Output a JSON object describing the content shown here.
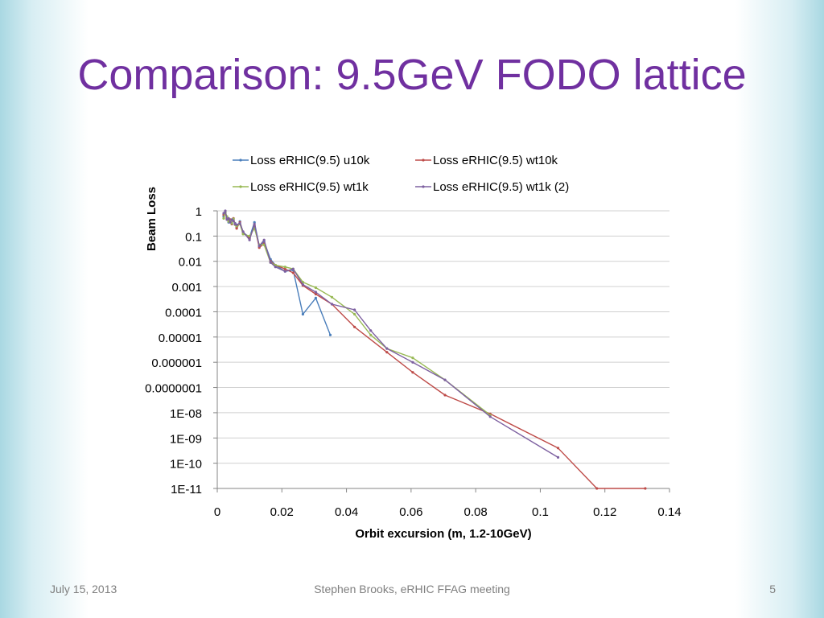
{
  "slide": {
    "title": "Comparison: 9.5GeV FODO lattice",
    "footer_date": "July 15, 2013",
    "footer_center": "Stephen Brooks, eRHIC FFAG meeting",
    "page_number": "5"
  },
  "colors": {
    "title": "#7030a0",
    "footer": "#7f7f7f",
    "grid": "#d0d0d0",
    "axis": "#868686"
  },
  "chart_data": {
    "type": "line",
    "title": "",
    "xlabel": "Orbit excursion (m, 1.2-10GeV)",
    "ylabel": "Beam Loss",
    "xlim": [
      0,
      0.14
    ],
    "ylim": [
      1e-11,
      1
    ],
    "yscale": "log",
    "grid": true,
    "legend_position": "top",
    "x_ticks": [
      "0",
      "0.02",
      "0.04",
      "0.06",
      "0.08",
      "0.1",
      "0.12",
      "0.14"
    ],
    "x_tick_values": [
      0,
      0.02,
      0.04,
      0.06,
      0.08,
      0.1,
      0.12,
      0.14
    ],
    "y_ticks": [
      "1",
      "0.1",
      "0.01",
      "0.001",
      "0.0001",
      "0.00001",
      "0.000001",
      "0.0000001",
      "1E-08",
      "1E-09",
      "1E-10",
      "1E-11"
    ],
    "y_tick_values": [
      1,
      0.1,
      0.01,
      0.001,
      0.0001,
      1e-05,
      1e-06,
      1e-07,
      1e-08,
      1e-09,
      1e-10,
      1e-11
    ],
    "series": [
      {
        "name": "Loss eRHIC(9.5) u10k",
        "color": "#4a7ebb",
        "x": [
          0.002,
          0.0025,
          0.003,
          0.0035,
          0.004,
          0.0045,
          0.005,
          0.0055,
          0.006,
          0.007,
          0.008,
          0.01,
          0.0115,
          0.013,
          0.0145,
          0.0165,
          0.018,
          0.021,
          0.0235,
          0.0265,
          0.0305,
          0.035
        ],
        "y": [
          0.6,
          0.9,
          0.55,
          0.35,
          0.42,
          0.3,
          0.45,
          0.32,
          0.22,
          0.38,
          0.14,
          0.09,
          0.35,
          0.04,
          0.06,
          0.012,
          0.007,
          0.004,
          0.0045,
          8e-05,
          0.00035,
          1.2e-05
        ]
      },
      {
        "name": "Loss eRHIC(9.5) wt10k",
        "color": "#be4b48",
        "x": [
          0.002,
          0.0025,
          0.003,
          0.0035,
          0.004,
          0.0045,
          0.005,
          0.0055,
          0.006,
          0.007,
          0.008,
          0.01,
          0.0115,
          0.013,
          0.0145,
          0.0165,
          0.018,
          0.021,
          0.0235,
          0.0265,
          0.0305,
          0.0355,
          0.0425,
          0.0525,
          0.0605,
          0.0705,
          0.0845,
          0.1055,
          0.1175,
          0.1325
        ],
        "y": [
          0.7,
          0.8,
          0.5,
          0.4,
          0.45,
          0.3,
          0.5,
          0.3,
          0.2,
          0.35,
          0.14,
          0.08,
          0.25,
          0.035,
          0.05,
          0.01,
          0.007,
          0.005,
          0.0035,
          0.0011,
          0.0005,
          0.0002,
          2.5e-05,
          2.5e-06,
          4e-07,
          5e-08,
          9e-09,
          4e-10,
          1e-11,
          1e-11
        ]
      },
      {
        "name": "Loss eRHIC(9.5) wt1k",
        "color": "#98b954",
        "x": [
          0.002,
          0.0025,
          0.003,
          0.0035,
          0.004,
          0.0045,
          0.005,
          0.0055,
          0.006,
          0.007,
          0.008,
          0.01,
          0.0115,
          0.013,
          0.0145,
          0.0165,
          0.018,
          0.021,
          0.0235,
          0.0265,
          0.0305,
          0.0355,
          0.0425,
          0.0475,
          0.0525,
          0.0605,
          0.0705,
          0.0845
        ],
        "y": [
          0.5,
          0.85,
          0.6,
          0.38,
          0.4,
          0.32,
          0.48,
          0.28,
          0.25,
          0.3,
          0.12,
          0.1,
          0.2,
          0.045,
          0.045,
          0.009,
          0.007,
          0.006,
          0.005,
          0.0015,
          0.0009,
          0.00038,
          8e-05,
          1.2e-05,
          3.5e-06,
          1.5e-06,
          2e-07,
          8e-09
        ]
      },
      {
        "name": "Loss eRHIC(9.5) wt1k (2)",
        "color": "#7d60a0",
        "x": [
          0.002,
          0.0025,
          0.003,
          0.0035,
          0.004,
          0.0045,
          0.005,
          0.0055,
          0.006,
          0.007,
          0.008,
          0.01,
          0.0115,
          0.013,
          0.0145,
          0.0165,
          0.018,
          0.021,
          0.0235,
          0.0265,
          0.0305,
          0.0355,
          0.0425,
          0.0475,
          0.0525,
          0.0605,
          0.0705,
          0.0845,
          0.1055
        ],
        "y": [
          0.8,
          1.0,
          0.45,
          0.5,
          0.35,
          0.45,
          0.4,
          0.3,
          0.28,
          0.32,
          0.15,
          0.07,
          0.3,
          0.04,
          0.07,
          0.009,
          0.006,
          0.004,
          0.005,
          0.0012,
          0.0006,
          0.0002,
          0.00012,
          1.8e-05,
          3.5e-06,
          1e-06,
          2e-07,
          7e-09,
          1.7e-10
        ]
      }
    ]
  }
}
